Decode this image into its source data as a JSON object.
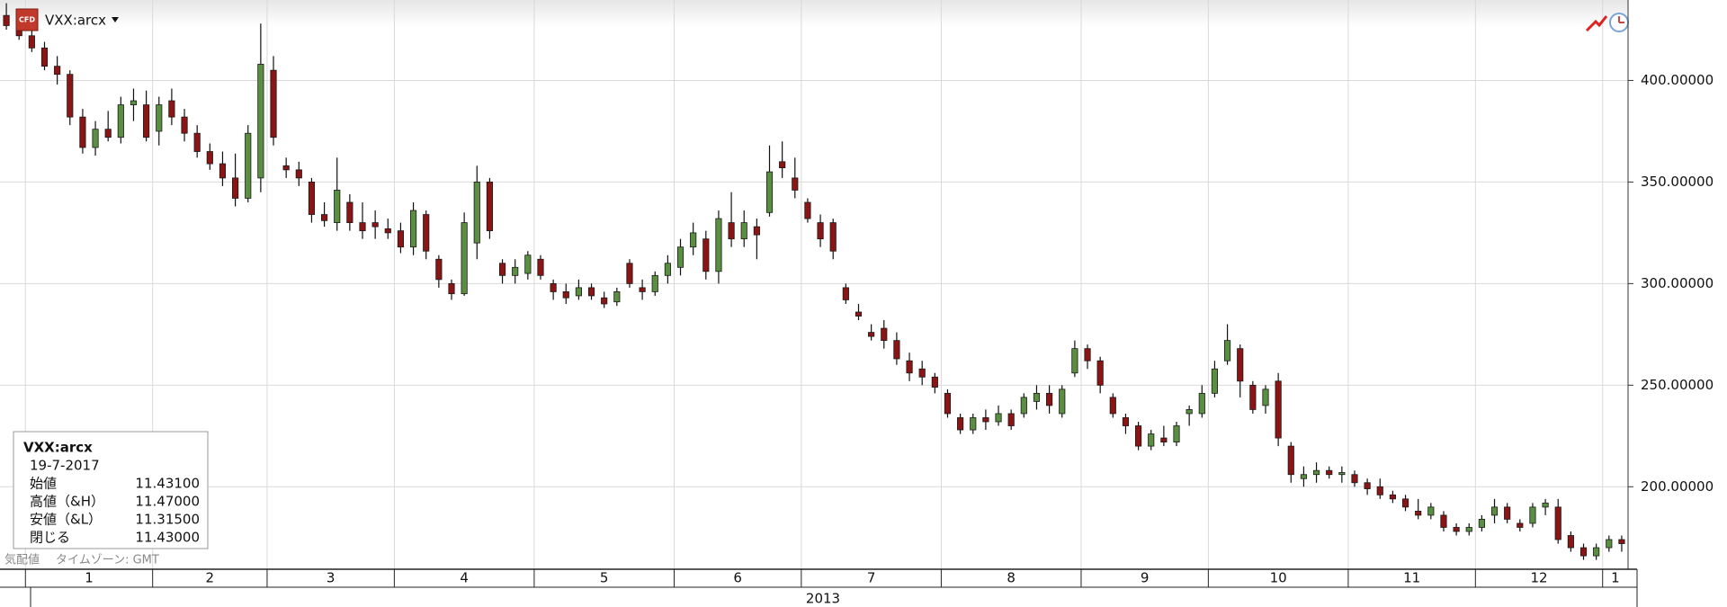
{
  "chart_data": {
    "type": "candlestick",
    "title": "VXX:arcx",
    "up_color": "#5a8f41",
    "down_color": "#8b1414",
    "grid": true,
    "ylim": [
      159.4,
      439.6
    ],
    "yticks": [
      {
        "value": 200,
        "label": "200.00000"
      },
      {
        "value": 250,
        "label": "250.00000"
      },
      {
        "value": 300,
        "label": "300.00000"
      },
      {
        "value": 350,
        "label": "350.00000"
      },
      {
        "value": 400,
        "label": "400.00000"
      }
    ],
    "year": "2013",
    "groups": [
      {
        "label": null,
        "open": [
          432,
          428
        ],
        "high": [
          438,
          432
        ],
        "low": [
          425,
          420
        ],
        "close": [
          427,
          422
        ]
      },
      {
        "label": "1",
        "open": [
          422,
          416,
          407,
          403,
          382,
          367,
          376,
          372,
          388,
          388
        ],
        "high": [
          425,
          419,
          412,
          405,
          386,
          380,
          385,
          392,
          396,
          395
        ],
        "low": [
          414,
          405,
          398,
          378,
          364,
          363,
          370,
          369,
          380,
          370
        ],
        "close": [
          416,
          407,
          403,
          382,
          367,
          376,
          372,
          388,
          390,
          372
        ]
      },
      {
        "label": "2",
        "open": [
          375,
          390,
          382,
          374,
          365,
          359,
          352,
          342,
          352
        ],
        "high": [
          392,
          396,
          386,
          378,
          369,
          365,
          364,
          378,
          428
        ],
        "low": [
          368,
          378,
          370,
          362,
          356,
          348,
          338,
          340,
          345
        ],
        "close": [
          388,
          382,
          374,
          365,
          359,
          352,
          342,
          374,
          408
        ]
      },
      {
        "label": "3",
        "open": [
          405,
          358,
          356,
          350,
          334,
          330,
          340,
          330,
          330,
          327
        ],
        "high": [
          412,
          362,
          360,
          352,
          340,
          362,
          344,
          340,
          336,
          332
        ],
        "low": [
          368,
          352,
          348,
          330,
          328,
          326,
          326,
          322,
          322,
          322
        ],
        "close": [
          372,
          356,
          352,
          334,
          331,
          346,
          330,
          326,
          328,
          325
        ]
      },
      {
        "label": "4",
        "open": [
          326,
          318,
          334,
          312,
          300,
          295,
          320,
          350,
          310,
          304,
          305
        ],
        "high": [
          330,
          340,
          336,
          314,
          302,
          335,
          358,
          352,
          312,
          312,
          316
        ],
        "low": [
          315,
          314,
          312,
          298,
          292,
          294,
          312,
          322,
          300,
          300,
          302
        ],
        "close": [
          318,
          336,
          316,
          302,
          295,
          330,
          350,
          326,
          304,
          308,
          314
        ]
      },
      {
        "label": "5",
        "open": [
          312,
          300,
          296,
          294,
          298,
          293,
          291,
          310,
          298,
          296,
          304
        ],
        "high": [
          314,
          302,
          300,
          302,
          300,
          296,
          298,
          312,
          302,
          306,
          314
        ],
        "low": [
          302,
          292,
          290,
          292,
          292,
          288,
          289,
          298,
          292,
          294,
          300
        ],
        "close": [
          304,
          296,
          293,
          298,
          294,
          290,
          296,
          300,
          296,
          304,
          310
        ]
      },
      {
        "label": "6",
        "open": [
          308,
          318,
          322,
          306,
          330,
          322,
          328,
          335,
          360,
          352
        ],
        "high": [
          322,
          330,
          326,
          336,
          345,
          336,
          332,
          368,
          370,
          362
        ],
        "low": [
          304,
          314,
          302,
          300,
          318,
          318,
          312,
          333,
          352,
          342
        ],
        "close": [
          318,
          325,
          306,
          332,
          322,
          330,
          324,
          355,
          357,
          346
        ]
      },
      {
        "label": "7",
        "open": [
          340,
          330,
          330,
          298,
          286,
          276,
          278,
          272,
          262,
          258,
          254
        ],
        "high": [
          342,
          334,
          332,
          300,
          290,
          280,
          282,
          276,
          266,
          262,
          256
        ],
        "low": [
          330,
          318,
          312,
          290,
          282,
          272,
          268,
          260,
          252,
          250,
          246
        ],
        "close": [
          332,
          322,
          316,
          292,
          284,
          274,
          272,
          263,
          256,
          254,
          249
        ]
      },
      {
        "label": "8",
        "open": [
          246,
          234,
          228,
          234,
          232,
          236,
          236,
          242,
          246,
          236,
          256
        ],
        "high": [
          248,
          236,
          236,
          238,
          240,
          238,
          246,
          250,
          250,
          250,
          272
        ],
        "low": [
          234,
          226,
          226,
          228,
          230,
          228,
          234,
          238,
          236,
          234,
          254
        ],
        "close": [
          236,
          228,
          234,
          232,
          236,
          230,
          244,
          246,
          240,
          248,
          268
        ]
      },
      {
        "label": "9",
        "open": [
          268,
          262,
          244,
          234,
          230,
          220,
          224,
          222,
          236,
          236
        ],
        "high": [
          270,
          264,
          246,
          236,
          232,
          228,
          230,
          232,
          240,
          250
        ],
        "low": [
          258,
          246,
          234,
          226,
          218,
          218,
          220,
          220,
          230,
          234
        ],
        "close": [
          262,
          250,
          236,
          230,
          220,
          226,
          222,
          230,
          238,
          246
        ]
      },
      {
        "label": "10",
        "open": [
          246,
          262,
          268,
          250,
          240,
          252,
          220,
          204,
          206,
          208,
          206
        ],
        "high": [
          262,
          280,
          270,
          252,
          250,
          256,
          222,
          210,
          212,
          210,
          210
        ],
        "low": [
          244,
          260,
          244,
          236,
          236,
          220,
          202,
          200,
          202,
          204,
          202
        ],
        "close": [
          258,
          272,
          252,
          238,
          248,
          224,
          206,
          206,
          208,
          206,
          207
        ]
      },
      {
        "label": "11",
        "open": [
          206,
          202,
          200,
          196,
          194,
          188,
          186,
          186,
          180,
          178
        ],
        "high": [
          208,
          204,
          204,
          198,
          196,
          194,
          192,
          188,
          182,
          182
        ],
        "low": [
          200,
          196,
          194,
          192,
          188,
          184,
          184,
          178,
          176,
          176
        ],
        "close": [
          202,
          199,
          196,
          194,
          190,
          186,
          190,
          180,
          178,
          180
        ]
      },
      {
        "label": "12",
        "open": [
          180,
          186,
          190,
          182,
          182,
          190,
          190,
          176,
          170,
          166
        ],
        "high": [
          186,
          194,
          192,
          184,
          192,
          194,
          194,
          178,
          172,
          172
        ],
        "low": [
          178,
          182,
          182,
          178,
          180,
          186,
          172,
          168,
          164,
          164
        ],
        "close": [
          184,
          190,
          184,
          180,
          190,
          192,
          174,
          170,
          166,
          170
        ]
      },
      {
        "label": "1",
        "open": [
          170,
          174
        ],
        "high": [
          176,
          176
        ],
        "low": [
          168,
          168
        ],
        "close": [
          174,
          172
        ]
      }
    ],
    "info": {
      "date": "19-7-2017",
      "rows": [
        {
          "label": "始値",
          "value": "11.43100"
        },
        {
          "label": "高値（&H）",
          "value": "11.47000"
        },
        {
          "label": "安値（&L）",
          "value": "11.31500"
        },
        {
          "label": "閉じる",
          "value": "11.43000"
        }
      ]
    },
    "footer": [
      "気配値",
      "タイムゾーン: GMT"
    ]
  }
}
